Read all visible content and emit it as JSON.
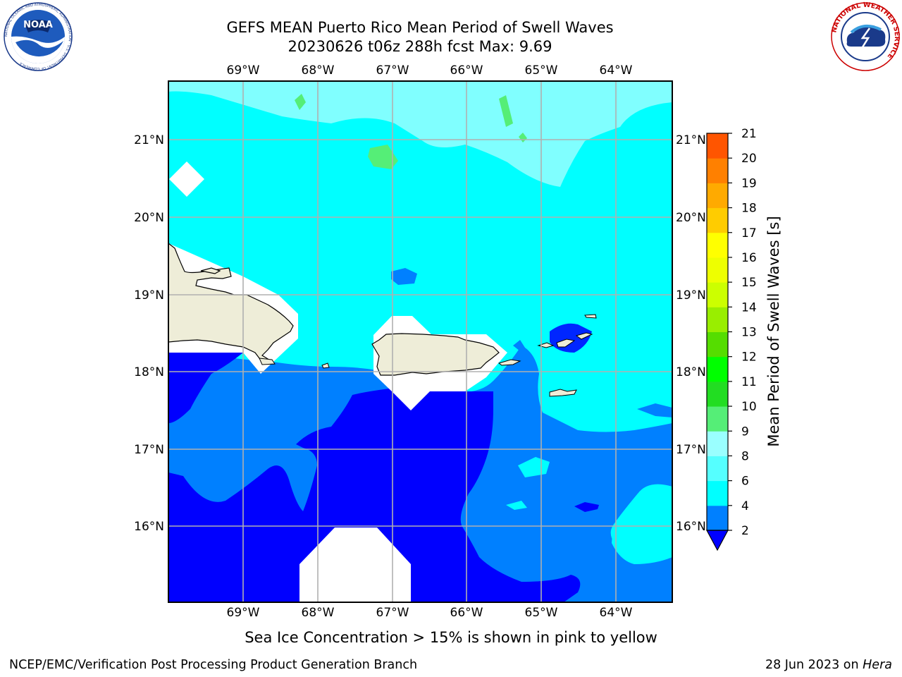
{
  "header": {
    "title_line1": "GEFS MEAN Puerto Rico Mean Period of Swell Waves",
    "title_line2": "20230626 t06z 288h fcst   Max: 9.69",
    "logos": [
      {
        "name": "noaa-logo",
        "text": "NOAA",
        "ring_text": "NATIONAL OCEANIC AND ATMOSPHERIC ADMINISTRATION · U.S. DEPARTMENT OF COMMERCE"
      },
      {
        "name": "nws-logo",
        "ring_text": "NATIONAL WEATHER SERVICE"
      }
    ]
  },
  "map": {
    "longitude_labels": [
      "69°W",
      "68°W",
      "67°W",
      "66°W",
      "65°W",
      "64°W"
    ],
    "latitude_labels": [
      "21°N",
      "20°N",
      "19°N",
      "18°N",
      "17°N",
      "16°N"
    ],
    "grid": true,
    "fill_colors": {
      "2-4": "#0000ff",
      "4-6": "#0080ff",
      "6-8": "#00ffff",
      "8-9": "#80ffff",
      "9-10": "#9affff",
      "10-11": "#55ee77",
      "land": "#eeedd8",
      "no_data": "#ffffff"
    }
  },
  "colorbar": {
    "title": "Mean Period of Swell Waves [s]",
    "tick_labels": [
      "2",
      "4",
      "6",
      "8",
      "9",
      "10",
      "11",
      "12",
      "13",
      "14",
      "15",
      "16",
      "17",
      "18",
      "19",
      "20",
      "21"
    ],
    "levels": [
      2,
      4,
      6,
      8,
      9,
      10,
      11,
      12,
      13,
      14,
      15,
      16,
      17,
      18,
      19,
      20,
      21
    ],
    "colors": [
      "#0080ff",
      "#00ffff",
      "#55ffff",
      "#9affff",
      "#55ee77",
      "#22dd22",
      "#00ff00",
      "#55dd00",
      "#99ee00",
      "#ccff00",
      "#eeff00",
      "#ffff00",
      "#ffcc00",
      "#ffaa00",
      "#ff8000",
      "#ff5500",
      "#ff2200",
      "#ff0000"
    ],
    "under_color": "#0000ff",
    "extend": "min"
  },
  "footer": {
    "note": "Sea Ice Concentration > 15% is shown in pink to yellow",
    "left": "NCEP/EMC/Verification Post Processing Product Generation Branch",
    "right_prefix": "28 Jun 2023 on ",
    "right_host": "Hera"
  }
}
